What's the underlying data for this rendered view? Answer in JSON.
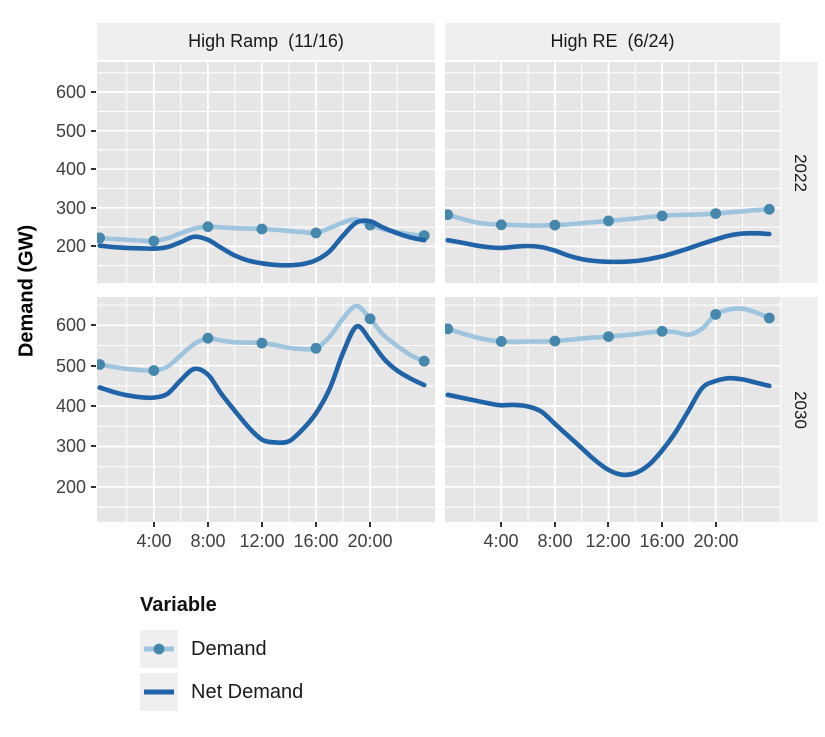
{
  "chart_data": {
    "type": "line",
    "ylabel": "Demand (GW)",
    "facets": {
      "col_labels": [
        "High Ramp  (11/16)",
        "High RE  (6/24)"
      ],
      "row_labels": [
        "2022",
        "2030"
      ]
    },
    "x_axis": {
      "tick_hours": [
        4,
        8,
        12,
        16,
        20
      ],
      "tick_labels": [
        "4:00",
        "8:00",
        "12:00",
        "16:00",
        "20:00"
      ],
      "minor_hours": [
        2,
        6,
        10,
        14,
        18,
        22
      ],
      "xlim": [
        -0.2,
        24.8
      ]
    },
    "y_axis": {
      "ticks": [
        200,
        300,
        400,
        500,
        600
      ],
      "minor": [
        150,
        250,
        350,
        450,
        550,
        650
      ],
      "row_ylims": [
        [
          105,
          678
        ],
        [
          113,
          670
        ]
      ]
    },
    "hours": [
      0,
      1,
      2,
      3,
      4,
      5,
      6,
      7,
      8,
      9,
      10,
      11,
      12,
      13,
      14,
      15,
      16,
      17,
      18,
      19,
      20,
      21,
      22,
      23,
      24
    ],
    "dot_hours": [
      0,
      4,
      8,
      12,
      16,
      20,
      24
    ],
    "panels": [
      {
        "facet_col": "High Ramp  (11/16)",
        "facet_row": "2022",
        "series": [
          {
            "name": "Demand",
            "values": [
              222,
              219,
              217,
              215,
              214,
              221,
              234,
              246,
              251,
              249,
              247,
              246,
              245,
              243,
              240,
              237,
              235,
              247,
              262,
              270,
              255,
              244,
              237,
              231,
              228
            ]
          },
          {
            "name": "Net Demand",
            "values": [
              202,
              198,
              196,
              195,
              194,
              198,
              211,
              225,
              217,
              196,
              176,
              163,
              156,
              152,
              151,
              154,
              164,
              187,
              228,
              262,
              265,
              248,
              234,
              223,
              216
            ]
          }
        ]
      },
      {
        "facet_col": "High RE  (6/24)",
        "facet_row": "2022",
        "series": [
          {
            "name": "Demand",
            "values": [
              282,
              272,
              263,
              258,
              256,
              255,
              254,
              254,
              255,
              257,
              260,
              263,
              266,
              269,
              272,
              276,
              279,
              281,
              282,
              283,
              285,
              288,
              291,
              294,
              296
            ]
          },
          {
            "name": "Net Demand",
            "values": [
              216,
              210,
              203,
              198,
              196,
              199,
              201,
              198,
              189,
              176,
              167,
              162,
              160,
              160,
              162,
              167,
              174,
              184,
              195,
              207,
              218,
              228,
              233,
              234,
              232
            ]
          }
        ]
      },
      {
        "facet_col": "High Ramp  (11/16)",
        "facet_row": "2030",
        "series": [
          {
            "name": "Demand",
            "values": [
              503,
              497,
              492,
              489,
              488,
              497,
              526,
              554,
              568,
              562,
              558,
              557,
              556,
              551,
              544,
              541,
              543,
              571,
              617,
              648,
              616,
              576,
              549,
              526,
              511
            ]
          },
          {
            "name": "Net Demand",
            "values": [
              446,
              435,
              427,
              422,
              421,
              430,
              464,
              492,
              478,
              430,
              388,
              348,
              317,
              310,
              313,
              342,
              382,
              442,
              532,
              597,
              563,
              518,
              488,
              468,
              452
            ]
          }
        ]
      },
      {
        "facet_col": "High RE  (6/24)",
        "facet_row": "2030",
        "series": [
          {
            "name": "Demand",
            "values": [
              591,
              581,
              571,
              564,
              560,
              559,
              560,
              560,
              561,
              564,
              567,
              570,
              572,
              575,
              578,
              582,
              585,
              583,
              577,
              592,
              627,
              639,
              641,
              632,
              618
            ]
          },
          {
            "name": "Net Demand",
            "values": [
              428,
              421,
              414,
              407,
              402,
              403,
              399,
              386,
              356,
              326,
              296,
              266,
              242,
              230,
              234,
              254,
              290,
              335,
              390,
              445,
              462,
              469,
              466,
              458,
              450
            ]
          }
        ]
      }
    ],
    "legend": {
      "title": "Variable",
      "entries": [
        {
          "label": "Demand",
          "series": "Demand"
        },
        {
          "label": "Net Demand",
          "series": "Net Demand"
        }
      ]
    },
    "colors": {
      "demand_line": "#9FC5DE",
      "demand_marker": "#4588AB",
      "net_demand_line": "#2063A7",
      "panel_bg": "#E6E6E6",
      "strip_bg": "#EFEFEF",
      "grid": "#FFFFFF",
      "tick_text": "#3F3F3F",
      "facet_text": "#191919"
    }
  }
}
